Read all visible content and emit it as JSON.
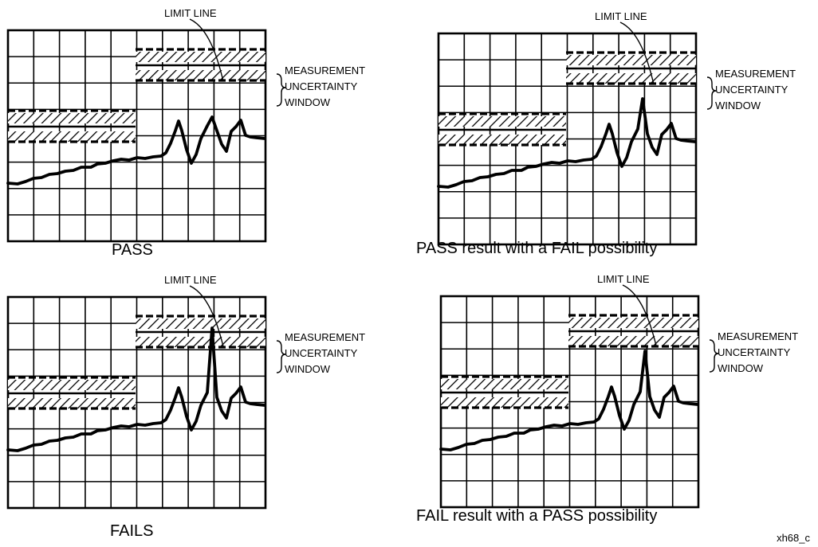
{
  "panels": [
    {
      "id": "pass",
      "caption": "PASS",
      "limit_label": "LIMIT LINE",
      "window_label": [
        "MEASUREMENT",
        "UNCERTAINTY",
        "WINDOW"
      ]
    },
    {
      "id": "pass-fail-possibility",
      "caption": "PASS result with a FAIL possibility",
      "limit_label": "LIMIT LINE",
      "window_label": [
        "MEASUREMENT",
        "UNCERTAINTY",
        "WINDOW"
      ]
    },
    {
      "id": "fails",
      "caption": "FAILS",
      "limit_label": "LIMIT LINE",
      "window_label": [
        "MEASUREMENT",
        "UNCERTAINTY",
        "WINDOW"
      ]
    },
    {
      "id": "fail-pass-possibility",
      "caption": "FAIL result with a PASS possibility",
      "limit_label": "LIMIT LINE",
      "window_label": [
        "MEASUREMENT",
        "UNCERTAINTY",
        "WINDOW"
      ]
    }
  ],
  "figure_id": "xh68_c",
  "colors": {
    "ink": "#000000",
    "paper": "#ffffff"
  }
}
